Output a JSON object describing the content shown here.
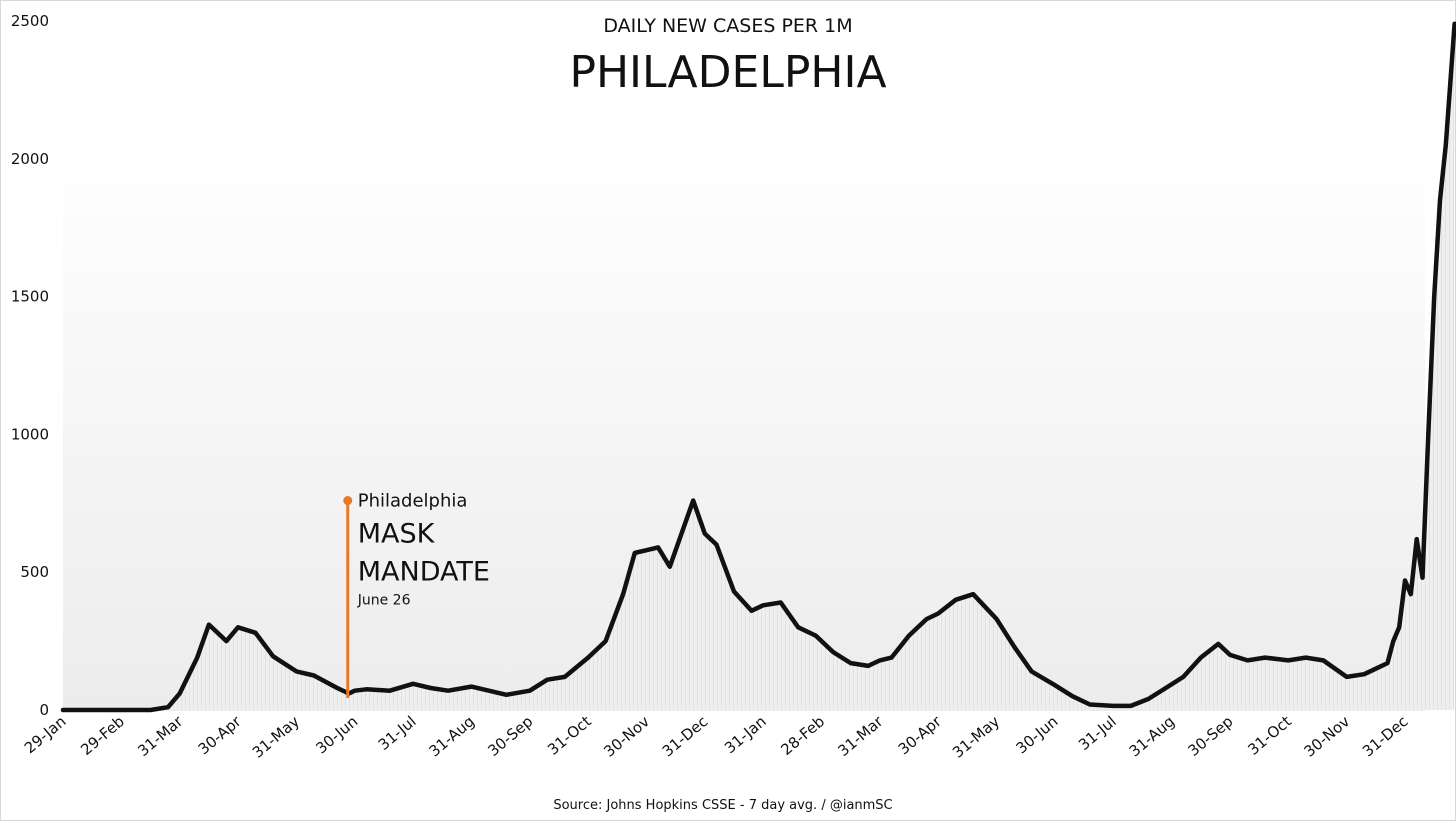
{
  "chart_data": {
    "type": "line",
    "title": "PHILADELPHIA",
    "subtitle": "DAILY NEW CASES PER 1M",
    "source": "Source: Johns Hopkins CSSE - 7 day avg. / @ianmSC",
    "xlabel": "",
    "ylabel": "",
    "ylim": [
      0,
      2500
    ],
    "yticks": [
      "0",
      "500",
      "1000",
      "1500",
      "2000",
      "2500"
    ],
    "x_tick_labels": [
      "29-Jan",
      "29-Feb",
      "31-Mar",
      "30-Apr",
      "31-May",
      "30-Jun",
      "31-Jul",
      "31-Aug",
      "30-Sep",
      "31-Oct",
      "30-Nov",
      "31-Dec",
      "31-Jan",
      "28-Feb",
      "31-Mar",
      "30-Apr",
      "31-May",
      "30-Jun",
      "31-Jul",
      "31-Aug",
      "30-Sep",
      "31-Oct",
      "30-Nov",
      "31-Dec"
    ],
    "grid": false,
    "legend": "none",
    "colors": {
      "line": "#111111",
      "fill": "#e6e6e6",
      "annotation": "#e8792b"
    },
    "series": [
      {
        "x_index": [
          0,
          1,
          1.5,
          1.8,
          2.0,
          2.3,
          2.5,
          2.8,
          3.0,
          3.3,
          3.6,
          4.0,
          4.3,
          4.7,
          4.9,
          5.0,
          5.2,
          5.6,
          6.0,
          6.3,
          6.6,
          7.0,
          7.3,
          7.6,
          8.0,
          8.3,
          8.6,
          9.0,
          9.3,
          9.6,
          9.8,
          10.0,
          10.2,
          10.4,
          10.6,
          10.8,
          11.0,
          11.2,
          11.5,
          11.8,
          12.0,
          12.3,
          12.6,
          12.9,
          13.2,
          13.5,
          13.8,
          14.0,
          14.2,
          14.5,
          14.8,
          15.0,
          15.3,
          15.6,
          16.0,
          16.3,
          16.6,
          17.0,
          17.3,
          17.6,
          18.0,
          18.3,
          18.6,
          18.9,
          19.2,
          19.5,
          19.8,
          20.0,
          20.3,
          20.6,
          21.0,
          21.3,
          21.6,
          22.0,
          22.3,
          22.5,
          22.7,
          22.8,
          22.9,
          23.0,
          23.1,
          23.2,
          23.3,
          23.4,
          23.5,
          23.6,
          23.7,
          23.85
        ],
        "values": [
          0,
          0,
          0,
          10,
          60,
          190,
          310,
          250,
          300,
          280,
          195,
          140,
          125,
          80,
          60,
          70,
          75,
          70,
          95,
          80,
          70,
          85,
          70,
          55,
          70,
          110,
          120,
          190,
          250,
          420,
          570,
          580,
          590,
          520,
          640,
          760,
          640,
          600,
          430,
          360,
          380,
          390,
          300,
          270,
          210,
          170,
          160,
          180,
          190,
          270,
          330,
          350,
          400,
          420,
          330,
          230,
          140,
          90,
          50,
          20,
          15,
          15,
          40,
          80,
          120,
          190,
          240,
          200,
          180,
          190,
          180,
          190,
          180,
          120,
          130,
          150,
          170,
          250,
          300,
          470,
          420,
          620,
          480,
          1000,
          1500,
          1850,
          2050,
          2490
        ]
      }
    ],
    "annotation": {
      "label_city": "Philadelphia",
      "label_line1": "MASK",
      "label_line2": "MANDATE",
      "label_date": "June 26",
      "x_index": 4.88,
      "value": 760
    }
  }
}
